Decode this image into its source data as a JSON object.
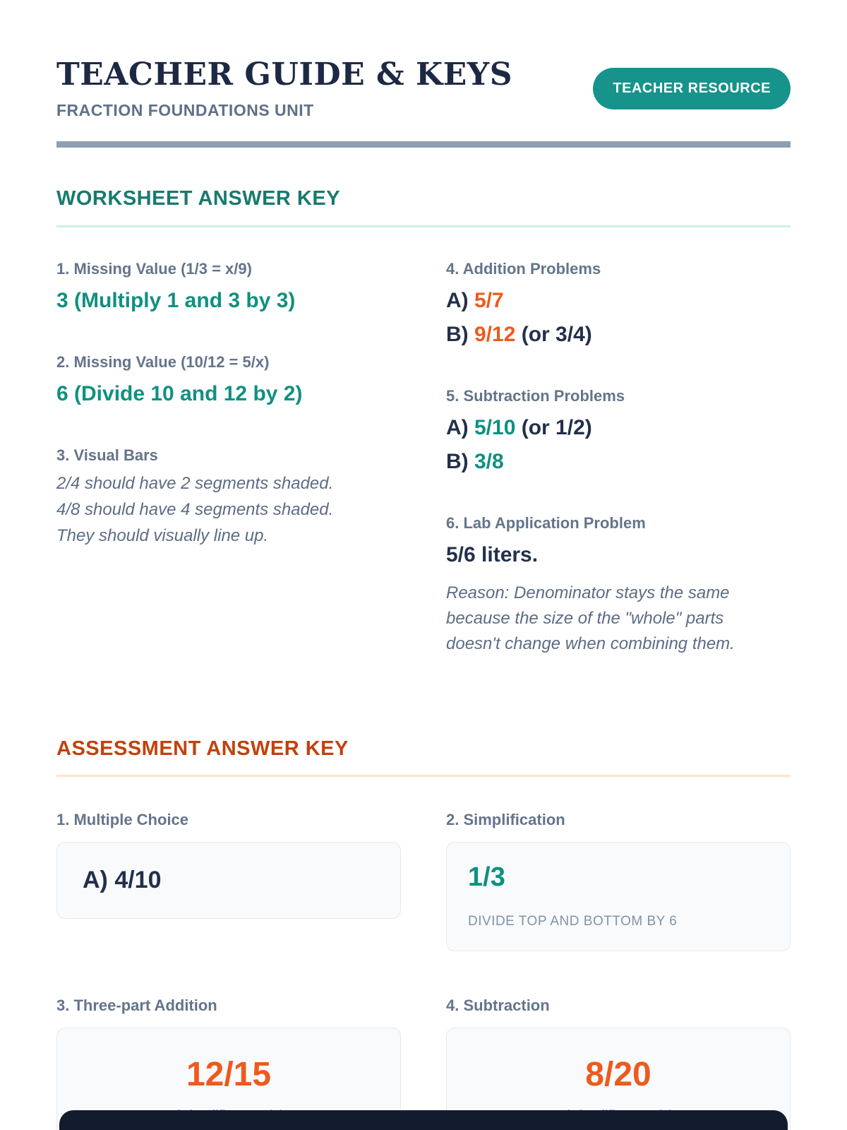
{
  "colors": {
    "teal_accent": "#16938a",
    "teal_text": "#0f9180",
    "orange_text": "#ee5a1d",
    "orange_heading": "#c2410c",
    "navy": "#1d2944",
    "label_gray": "#64748b",
    "footer_navy": "#131c2f"
  },
  "header": {
    "title": "TEACHER GUIDE & KEYS",
    "subtitle": "FRACTION FOUNDATIONS UNIT",
    "badge": "TEACHER RESOURCE"
  },
  "worksheet": {
    "heading": "WORKSHEET ANSWER KEY",
    "items": [
      {
        "label": "1. Missing Value (1/3 = x/9)",
        "answer": "3 (Multiply 1 and 3 by 3)"
      },
      {
        "label": "2. Missing Value (10/12 = 5/x)",
        "answer": "6 (Divide 10 and 12 by 2)"
      },
      {
        "label": "3. Visual Bars",
        "notes": [
          "2/4 should have 2 segments shaded.",
          "4/8 should have 4 segments shaded.",
          "They should visually line up."
        ]
      },
      {
        "label": "4. Addition Problems",
        "answers": [
          {
            "prefix": "A) ",
            "value": "5/7",
            "suffix": ""
          },
          {
            "prefix": "B) ",
            "value": "9/12",
            "suffix": " (or 3/4)"
          }
        ]
      },
      {
        "label": "5. Subtraction Problems",
        "answers": [
          {
            "prefix": "A) ",
            "value": "5/10",
            "suffix": " (or 1/2)"
          },
          {
            "prefix": "B) ",
            "value": "3/8",
            "suffix": ""
          }
        ]
      },
      {
        "label": "6. Lab Application Problem",
        "answer": "5/6 liters.",
        "reason": "Reason: Denominator stays the same because the size of the \"whole\" parts doesn't change when combining them."
      }
    ]
  },
  "assessment": {
    "heading": "ASSESSMENT ANSWER KEY",
    "items": [
      {
        "label": "1. Multiple Choice",
        "answer": "A) 4/10"
      },
      {
        "label": "2. Simplification",
        "answer": "1/3",
        "note": "DIVIDE TOP AND BOTTOM BY 6"
      },
      {
        "label": "3. Three-part Addition",
        "answer": "12/15",
        "note": "(Simplifies to 4/5)"
      },
      {
        "label": "4. Subtraction",
        "answer": "8/20",
        "note": "(Simplifies to 2/5)"
      }
    ]
  }
}
